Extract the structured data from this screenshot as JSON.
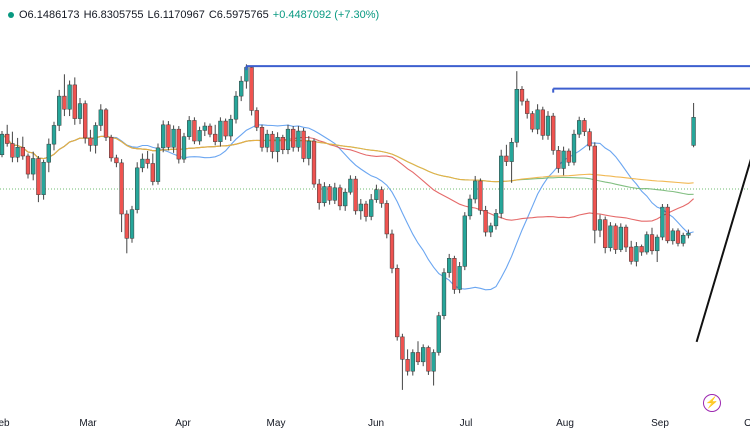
{
  "ohlc": {
    "open": "O6.1486173",
    "high": "H6.8305755",
    "low": "L6.1170967",
    "close": "C6.5975765",
    "change": "+0.4487092 (+7.30%)"
  },
  "colors": {
    "up": "#26a69a",
    "down": "#ef5350",
    "ma_blue": "#5b9cf0",
    "ma_red": "#e25a5a",
    "ma_green": "#74b874",
    "ma_orange": "#f0b040",
    "hline": "#3d5fcf",
    "trend": "#111111",
    "price_level": "#4caf50"
  },
  "icons": {
    "lightning": "lightning-icon"
  },
  "chart_data": {
    "type": "candlestick",
    "x_ticks": [
      "eb",
      "Mar",
      "Apr",
      "May",
      "Jun",
      "Jul",
      "Aug",
      "Sep",
      "O"
    ],
    "ylim": [
      2.1,
      8.0
    ],
    "price_level": 5.45,
    "horizontal_levels": [
      {
        "from_index": 47,
        "value": 7.42
      },
      {
        "from_index": 106,
        "value": 7.06
      }
    ],
    "candles": [
      [
        6.0,
        6.38,
        5.96,
        6.33
      ],
      [
        6.33,
        6.48,
        6.13,
        6.18
      ],
      [
        6.18,
        6.37,
        5.88,
        5.96
      ],
      [
        5.96,
        6.27,
        5.88,
        6.12
      ],
      [
        6.12,
        6.29,
        5.92,
        5.98
      ],
      [
        5.98,
        6.02,
        5.62,
        5.69
      ],
      [
        5.69,
        6.05,
        5.59,
        5.94
      ],
      [
        5.94,
        5.98,
        5.24,
        5.36
      ],
      [
        5.36,
        5.92,
        5.28,
        5.88
      ],
      [
        5.88,
        6.26,
        5.72,
        6.17
      ],
      [
        6.17,
        6.53,
        6.07,
        6.47
      ],
      [
        6.47,
        7.04,
        6.38,
        6.94
      ],
      [
        6.94,
        7.29,
        6.62,
        6.73
      ],
      [
        6.73,
        7.19,
        6.62,
        7.12
      ],
      [
        7.12,
        7.24,
        6.48,
        6.58
      ],
      [
        6.58,
        6.91,
        6.49,
        6.82
      ],
      [
        6.82,
        6.87,
        6.18,
        6.27
      ],
      [
        6.27,
        6.4,
        6.05,
        6.15
      ],
      [
        6.15,
        6.52,
        6.02,
        6.47
      ],
      [
        6.47,
        6.81,
        6.38,
        6.72
      ],
      [
        6.72,
        6.75,
        6.22,
        6.28
      ],
      [
        6.28,
        6.32,
        5.89,
        5.95
      ],
      [
        5.95,
        6.0,
        5.8,
        5.87
      ],
      [
        5.87,
        5.93,
        4.76,
        5.05
      ],
      [
        5.05,
        5.11,
        4.42,
        4.66
      ],
      [
        4.66,
        5.18,
        4.59,
        5.12
      ],
      [
        5.12,
        5.88,
        5.06,
        5.79
      ],
      [
        5.79,
        6.02,
        5.72,
        5.93
      ],
      [
        5.93,
        6.06,
        5.78,
        5.86
      ],
      [
        5.86,
        6.02,
        5.51,
        5.57
      ],
      [
        5.57,
        6.18,
        5.52,
        6.11
      ],
      [
        6.11,
        6.55,
        6.04,
        6.48
      ],
      [
        6.48,
        6.54,
        6.07,
        6.12
      ],
      [
        6.12,
        6.47,
        6.03,
        6.41
      ],
      [
        6.41,
        6.46,
        5.86,
        5.93
      ],
      [
        5.93,
        6.35,
        5.87,
        6.29
      ],
      [
        6.29,
        6.62,
        6.24,
        6.55
      ],
      [
        6.55,
        6.6,
        6.17,
        6.22
      ],
      [
        6.22,
        6.45,
        6.16,
        6.39
      ],
      [
        6.39,
        6.52,
        6.3,
        6.46
      ],
      [
        6.46,
        6.5,
        6.28,
        6.33
      ],
      [
        6.33,
        6.48,
        6.15,
        6.21
      ],
      [
        6.21,
        6.6,
        6.13,
        6.54
      ],
      [
        6.54,
        6.58,
        6.24,
        6.3
      ],
      [
        6.3,
        6.64,
        6.22,
        6.57
      ],
      [
        6.57,
        7.02,
        6.5,
        6.94
      ],
      [
        6.94,
        7.26,
        6.86,
        7.18
      ],
      [
        7.18,
        7.45,
        7.06,
        7.4
      ],
      [
        7.4,
        7.41,
        6.63,
        6.71
      ],
      [
        6.71,
        6.76,
        6.38,
        6.44
      ],
      [
        6.44,
        6.48,
        6.05,
        6.12
      ],
      [
        6.12,
        6.4,
        6.04,
        6.33
      ],
      [
        6.33,
        6.38,
        5.94,
        6.05
      ],
      [
        6.05,
        6.36,
        5.88,
        6.28
      ],
      [
        6.28,
        6.32,
        6.01,
        6.08
      ],
      [
        6.08,
        6.48,
        6.01,
        6.41
      ],
      [
        6.41,
        6.46,
        6.05,
        6.12
      ],
      [
        6.12,
        6.46,
        6.05,
        6.38
      ],
      [
        6.38,
        6.43,
        5.88,
        5.94
      ],
      [
        5.94,
        6.3,
        5.83,
        6.22
      ],
      [
        6.22,
        6.26,
        5.47,
        5.53
      ],
      [
        5.53,
        5.61,
        5.12,
        5.23
      ],
      [
        5.23,
        5.56,
        5.17,
        5.49
      ],
      [
        5.49,
        5.53,
        5.2,
        5.27
      ],
      [
        5.27,
        5.55,
        5.21,
        5.47
      ],
      [
        5.47,
        5.52,
        5.11,
        5.18
      ],
      [
        5.18,
        5.46,
        5.1,
        5.4
      ],
      [
        5.4,
        5.67,
        5.36,
        5.61
      ],
      [
        5.61,
        5.66,
        5.04,
        5.1
      ],
      [
        5.1,
        5.29,
        4.96,
        5.21
      ],
      [
        5.21,
        5.26,
        4.93,
        5.01
      ],
      [
        5.01,
        5.37,
        4.95,
        5.28
      ],
      [
        5.28,
        5.52,
        5.23,
        5.44
      ],
      [
        5.44,
        5.49,
        5.15,
        5.22
      ],
      [
        5.22,
        5.27,
        4.66,
        4.73
      ],
      [
        4.73,
        4.8,
        4.1,
        4.18
      ],
      [
        4.18,
        4.24,
        3.02,
        3.08
      ],
      [
        3.08,
        3.13,
        2.23,
        2.72
      ],
      [
        2.72,
        2.88,
        2.46,
        2.53
      ],
      [
        2.53,
        2.88,
        2.46,
        2.83
      ],
      [
        2.83,
        3.01,
        2.63,
        2.68
      ],
      [
        2.68,
        2.96,
        2.61,
        2.91
      ],
      [
        2.91,
        2.94,
        2.47,
        2.53
      ],
      [
        2.53,
        2.88,
        2.3,
        2.83
      ],
      [
        2.83,
        3.48,
        2.78,
        3.42
      ],
      [
        3.42,
        4.18,
        3.36,
        4.11
      ],
      [
        4.11,
        4.41,
        4.03,
        4.34
      ],
      [
        4.34,
        4.38,
        3.77,
        3.84
      ],
      [
        3.84,
        4.28,
        3.78,
        4.21
      ],
      [
        4.21,
        5.08,
        4.15,
        5.02
      ],
      [
        5.02,
        5.36,
        4.96,
        5.29
      ],
      [
        5.29,
        5.66,
        5.22,
        5.58
      ],
      [
        5.58,
        5.62,
        5.04,
        5.11
      ],
      [
        5.11,
        5.18,
        4.69,
        4.76
      ],
      [
        4.76,
        4.91,
        4.68,
        4.86
      ],
      [
        4.86,
        5.13,
        4.8,
        5.06
      ],
      [
        5.06,
        6.08,
        4.98,
        5.98
      ],
      [
        5.98,
        6.16,
        5.82,
        5.89
      ],
      [
        5.89,
        6.27,
        5.55,
        6.2
      ],
      [
        6.2,
        7.34,
        6.12,
        7.05
      ],
      [
        7.05,
        7.1,
        6.79,
        6.86
      ],
      [
        6.86,
        6.9,
        6.58,
        6.66
      ],
      [
        6.66,
        6.7,
        6.36,
        6.41
      ],
      [
        6.41,
        6.81,
        6.33,
        6.72
      ],
      [
        6.72,
        6.77,
        6.24,
        6.31
      ],
      [
        6.31,
        6.7,
        6.24,
        6.62
      ],
      [
        6.62,
        6.67,
        6.0,
        6.07
      ],
      [
        6.07,
        6.14,
        5.71,
        5.78
      ],
      [
        5.78,
        6.13,
        5.67,
        6.06
      ],
      [
        6.06,
        6.1,
        5.82,
        5.88
      ],
      [
        5.88,
        6.4,
        5.83,
        6.33
      ],
      [
        6.33,
        6.61,
        6.27,
        6.55
      ],
      [
        6.55,
        6.59,
        6.3,
        6.37
      ],
      [
        6.37,
        6.42,
        6.07,
        6.14
      ],
      [
        6.14,
        6.2,
        4.58,
        4.79
      ],
      [
        4.79,
        5.04,
        4.68,
        4.96
      ],
      [
        4.96,
        5.01,
        4.42,
        4.51
      ],
      [
        4.51,
        4.92,
        4.45,
        4.86
      ],
      [
        4.86,
        4.9,
        4.41,
        4.48
      ],
      [
        4.48,
        4.9,
        4.44,
        4.84
      ],
      [
        4.84,
        4.88,
        4.44,
        4.52
      ],
      [
        4.52,
        4.62,
        4.24,
        4.29
      ],
      [
        4.29,
        4.6,
        4.21,
        4.53
      ],
      [
        4.53,
        4.56,
        4.38,
        4.44
      ],
      [
        4.44,
        4.77,
        4.4,
        4.72
      ],
      [
        4.72,
        4.83,
        4.4,
        4.46
      ],
      [
        4.46,
        4.72,
        4.28,
        4.68
      ],
      [
        4.68,
        5.21,
        4.63,
        5.16
      ],
      [
        5.16,
        5.21,
        4.58,
        4.62
      ],
      [
        4.62,
        4.82,
        4.56,
        4.78
      ],
      [
        4.78,
        4.82,
        4.53,
        4.58
      ],
      [
        4.58,
        4.75,
        4.53,
        4.71
      ],
      [
        4.71,
        4.8,
        4.66,
        4.74
      ],
      [
        6.15,
        6.83,
        6.12,
        6.6
      ]
    ],
    "moving_averages": [
      {
        "color": "blue",
        "period": 20
      },
      {
        "color": "red",
        "period": 50
      },
      {
        "color": "green",
        "period": 100
      },
      {
        "color": "orange",
        "period": 200
      }
    ]
  }
}
